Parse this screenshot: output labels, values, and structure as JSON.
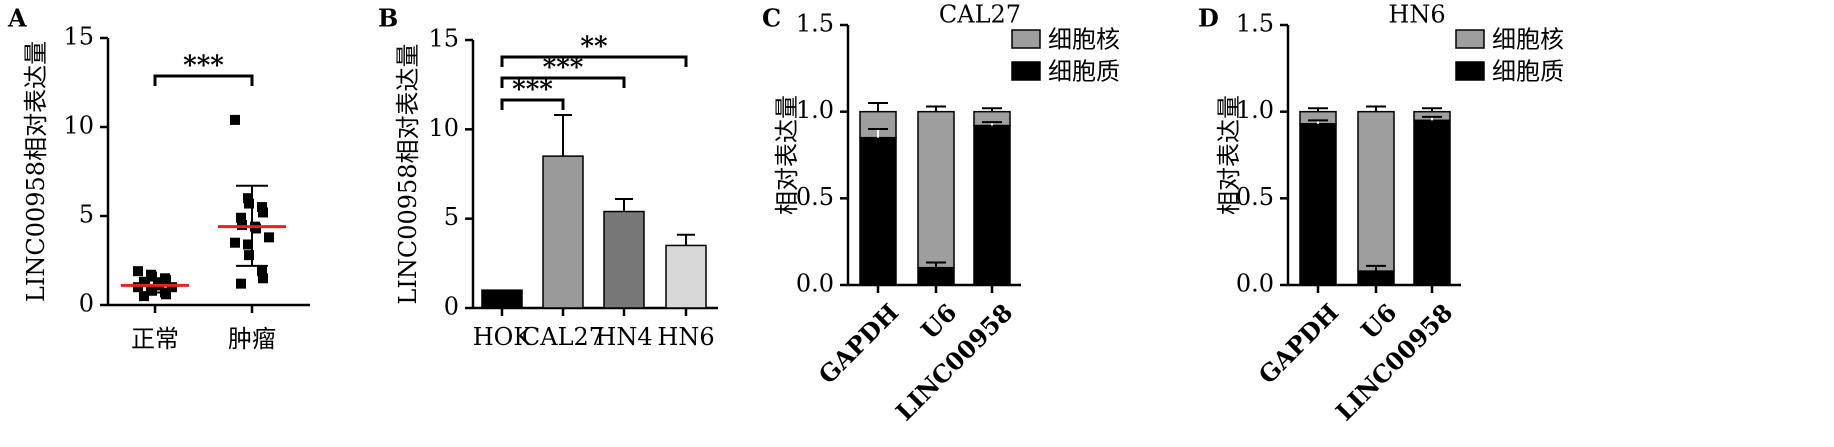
{
  "chart_data": [
    {
      "panel": "A",
      "type": "scatter",
      "title": "",
      "ylabel": "LINC00958相对表达量",
      "ylim": [
        0,
        15
      ],
      "yticks": [
        "0",
        "5",
        "10",
        "15"
      ],
      "categories": [
        "正常",
        "肿瘤"
      ],
      "series": [
        {
          "values": [
            1.9,
            1.7,
            1.6,
            1.5,
            1.4,
            1.3,
            1.3,
            1.2,
            1.1,
            1.0,
            1.0,
            0.9,
            0.8,
            0.7,
            0.6,
            0.5
          ],
          "mean": 1.1,
          "sd_upper": 1.5,
          "sd_lower": 0.7
        },
        {
          "values": [
            10.4,
            6.0,
            5.7,
            5.5,
            5.2,
            4.9,
            4.5,
            4.4,
            4.3,
            3.8,
            3.5,
            3.4,
            2.8,
            1.9,
            1.5,
            1.2
          ],
          "mean": 4.4,
          "sd_upper": 6.7,
          "sd_lower": 2.2
        }
      ],
      "significance": [
        {
          "label": "***"
        }
      ],
      "colors": {
        "point": "#000000",
        "mean": "#e8211e"
      }
    },
    {
      "panel": "B",
      "type": "bar",
      "title": "",
      "ylabel": "LINC00958相对表达量",
      "ylim": [
        0,
        15
      ],
      "yticks": [
        "0",
        "5",
        "10",
        "15"
      ],
      "categories": [
        "HOK",
        "CAL27",
        "HN4",
        "HN6"
      ],
      "values": [
        1.0,
        8.5,
        5.4,
        3.5
      ],
      "errors": [
        0,
        2.3,
        0.7,
        0.6
      ],
      "colors": [
        "#000000",
        "#9a9a9a",
        "#777777",
        "#d8d8d8"
      ],
      "significance": [
        {
          "label": "***"
        },
        {
          "label": "***"
        },
        {
          "label": "**"
        }
      ]
    },
    {
      "panel": "C",
      "type": "bar",
      "stacked": true,
      "title": "CAL27",
      "ylabel": "相对表达量",
      "ylim": [
        0,
        1.5
      ],
      "yticks": [
        "0.0",
        "0.5",
        "1.0",
        "1.5"
      ],
      "categories": [
        "GAPDH",
        "U6",
        "LINC00958"
      ],
      "series": [
        {
          "name": "细胞质",
          "values": [
            0.85,
            0.1,
            0.92
          ],
          "errors": [
            0.05,
            0.03,
            0.02
          ],
          "color": "#000000"
        },
        {
          "name": "细胞核",
          "values": [
            0.15,
            0.9,
            0.08
          ],
          "errors": [
            0.05,
            0.03,
            0.02
          ],
          "color": "#9e9e9e"
        }
      ]
    },
    {
      "panel": "D",
      "type": "bar",
      "stacked": true,
      "title": "HN6",
      "ylabel": "相对表达量",
      "ylim": [
        0,
        1.5
      ],
      "yticks": [
        "0.0",
        "0.5",
        "1.0",
        "1.5"
      ],
      "categories": [
        "GAPDH",
        "U6",
        "LINC00958"
      ],
      "series": [
        {
          "name": "细胞质",
          "values": [
            0.93,
            0.08,
            0.95
          ],
          "errors": [
            0.02,
            0.03,
            0.02
          ],
          "color": "#000000"
        },
        {
          "name": "细胞核",
          "values": [
            0.07,
            0.92,
            0.05
          ],
          "errors": [
            0.02,
            0.03,
            0.02
          ],
          "color": "#9e9e9e"
        }
      ]
    }
  ]
}
